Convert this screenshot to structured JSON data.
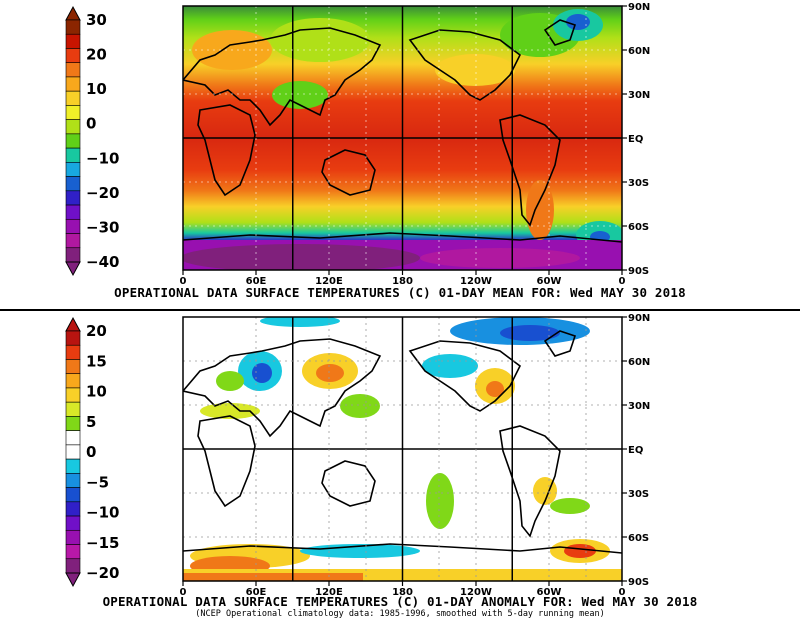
{
  "top_panel": {
    "title": "OPERATIONAL DATA SURFACE TEMPERATURES (C) 01-DAY MEAN FOR: Wed MAY 30 2018",
    "colorbar": {
      "labels": [
        "30",
        "20",
        "10",
        "0",
        "−10",
        "−20",
        "−30",
        "−40"
      ],
      "colors": [
        "#8b2500",
        "#c81400",
        "#e83c10",
        "#f07818",
        "#f8a81c",
        "#f8d028",
        "#f0f028",
        "#b0e018",
        "#60d018",
        "#18c8a0",
        "#18a8e0",
        "#1860d0",
        "#3020c8",
        "#7010c8",
        "#9810b0",
        "#b018a0",
        "#80207c"
      ]
    }
  },
  "bottom_panel": {
    "title": "OPERATIONAL DATA SURFACE TEMPERATURES (C) 01-DAY ANOMALY FOR: Wed MAY 30 2018",
    "subtitle": "(NCEP Operational climatology data: 1985-1996, smoothed with 5-day running mean)",
    "colorbar": {
      "labels": [
        "20",
        "15",
        "10",
        "5",
        "0",
        "−5",
        "−10",
        "−15",
        "−20"
      ],
      "colors": [
        "#b81410",
        "#e83c10",
        "#f07818",
        "#f8a81c",
        "#f8d028",
        "#d8e828",
        "#80d818",
        "#ffffff",
        "#ffffff",
        "#18c8e0",
        "#1890e0",
        "#1850d0",
        "#3020c8",
        "#7010c8",
        "#9810b0",
        "#b818a8",
        "#80207c"
      ]
    }
  },
  "axes": {
    "lon_labels": [
      "0",
      "60E",
      "120E",
      "180",
      "120W",
      "60W",
      "0"
    ],
    "lat_labels": [
      "90N",
      "60N",
      "30N",
      "EQ",
      "30S",
      "60S",
      "90S"
    ]
  }
}
